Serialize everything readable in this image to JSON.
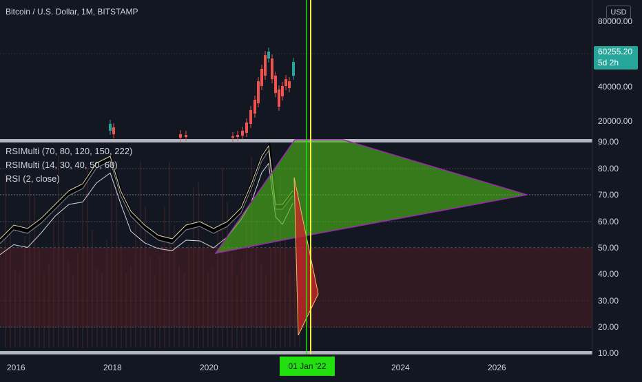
{
  "header": {
    "title": "Bitcoin / U.S. Dollar, 1M, BITSTAMP",
    "currency": "USD"
  },
  "price_scale": {
    "ticks": [
      "80000.00",
      "40000.00",
      "20000.00"
    ],
    "last_price": "60255.20",
    "countdown": "5d 2h"
  },
  "indicators": {
    "legend": [
      "RSIMulti (70, 80, 120, 150, 222)",
      "RSIMulti (14, 30, 40, 50, 60)",
      "RSI (2, close)"
    ],
    "ticks": [
      "90.00",
      "80.00",
      "70.00",
      "60.00",
      "50.00",
      "40.00",
      "30.00",
      "20.00",
      "10.00"
    ]
  },
  "time_axis": {
    "ticks": [
      "2016",
      "2018",
      "2020",
      "2024",
      "2026"
    ],
    "cursor_label": "01 Jan '22"
  },
  "colors": {
    "background": "#131722",
    "up_candle": "#26a69a",
    "down_candle": "#ef5350",
    "green_triangle": "#4caf1a",
    "red_triangle": "#c62828",
    "cursor_line": "#f5f542",
    "date_label_bg": "#22e00f",
    "purple_edge": "#9c27b0"
  }
}
